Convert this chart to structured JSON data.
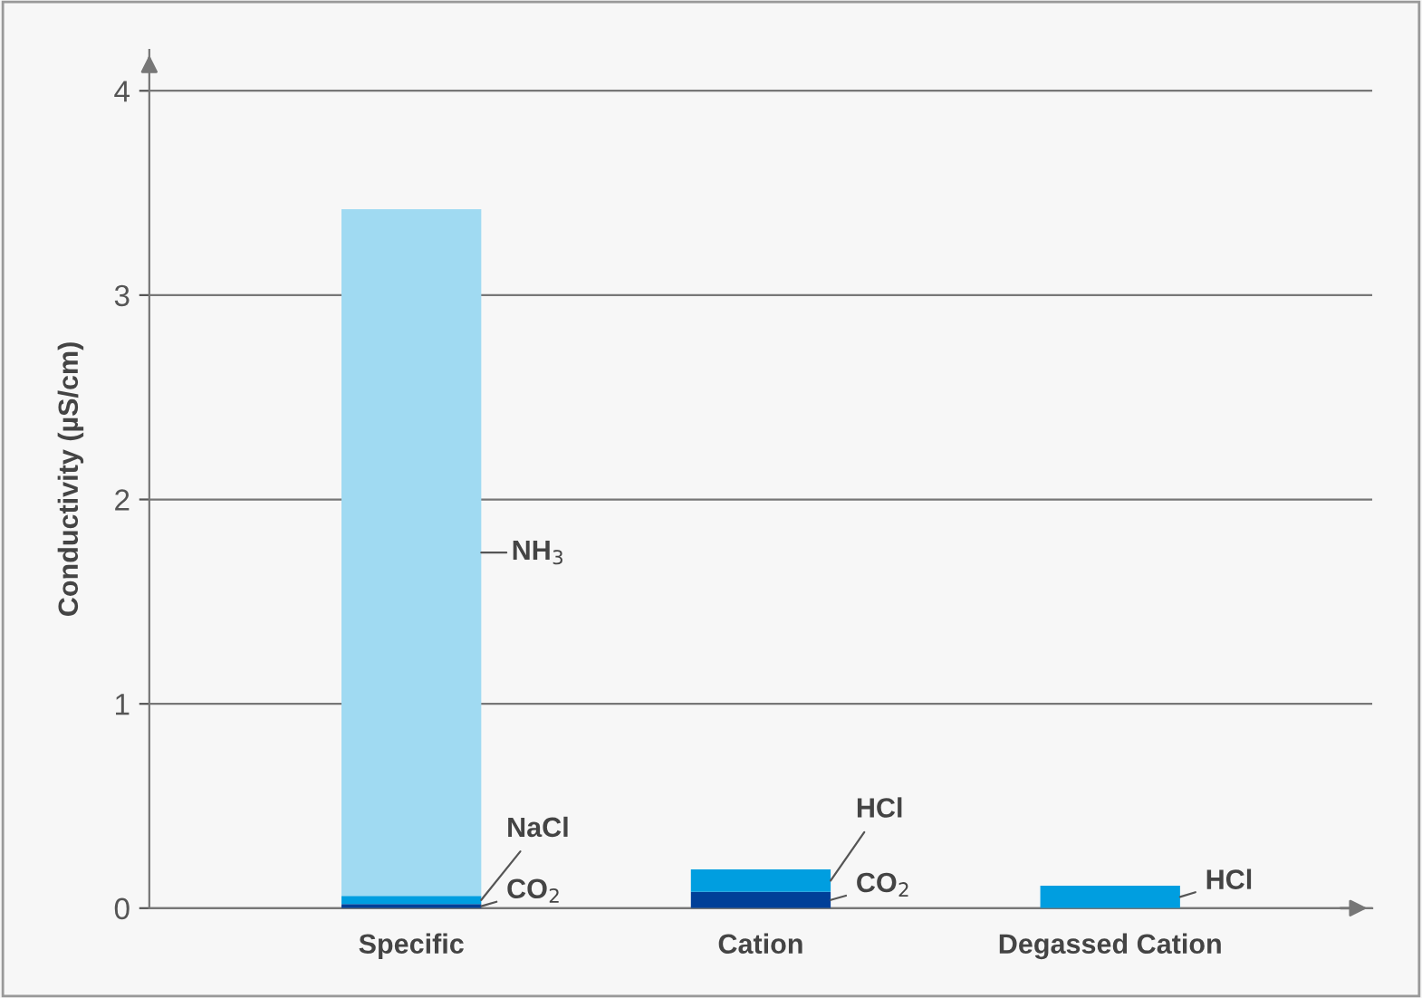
{
  "chart_data": {
    "type": "bar",
    "stacked": true,
    "ylabel": "Conductivity (µS/cm)",
    "categories": [
      "Specific",
      "Cation",
      "Degassed Cation"
    ],
    "series": [
      {
        "name": "CO$_{2}$",
        "color": "#003f98",
        "values": [
          0.02,
          0.08,
          null
        ]
      },
      {
        "name": "NaCl",
        "color": "#009ee0",
        "values": [
          0.04,
          null,
          null
        ]
      },
      {
        "name": "NH$_{3}$",
        "color": "#a0daf2",
        "values": [
          3.36,
          null,
          null
        ]
      },
      {
        "name": "HCl",
        "color": "#009ee0",
        "values": [
          null,
          0.11,
          0.11
        ]
      }
    ],
    "ylim": [
      0,
      4.2
    ],
    "yticks": [
      0,
      1,
      2,
      3,
      4
    ],
    "grid": "y",
    "legend": false
  }
}
